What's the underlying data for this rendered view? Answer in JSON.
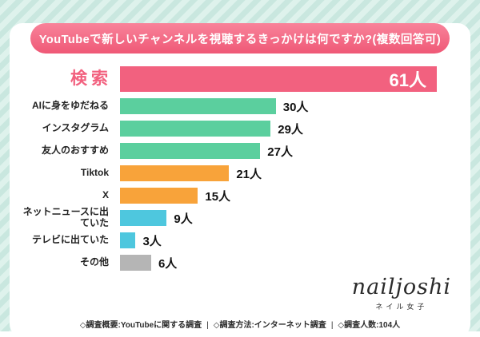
{
  "title": {
    "text": "YouTubeで新しいチャンネルを視聴するきっかけは何ですか?(複数回答可)"
  },
  "chart_data": {
    "type": "bar",
    "orientation": "horizontal",
    "title": "YouTubeで新しいチャンネルを視聴するきっかけは何ですか?(複数回答可)",
    "categories": [
      "検索",
      "AIに身をゆだねる",
      "インスタグラム",
      "友人のおすすめ",
      "Tiktok",
      "X",
      "ネットニュースに出ていた",
      "テレビに出ていた",
      "その他"
    ],
    "values": [
      61,
      30,
      29,
      27,
      21,
      15,
      9,
      3,
      6
    ],
    "value_labels": [
      "61人",
      "30人",
      "29人",
      "27人",
      "21人",
      "15人",
      "9人",
      "3人",
      "6人"
    ],
    "unit": "人",
    "xlim": [
      0,
      61
    ],
    "grid": false,
    "legend": "none",
    "bar_colors": [
      "#f2617f",
      "#5bcf9e",
      "#5bcf9e",
      "#5bcf9e",
      "#f8a33a",
      "#f8a33a",
      "#4ec7de",
      "#4ec7de",
      "#b5b5b5"
    ],
    "value_label_position": [
      "inside-end",
      "outside",
      "outside",
      "outside",
      "outside",
      "outside",
      "outside",
      "outside",
      "outside"
    ]
  },
  "footer": {
    "items": [
      "◇調査概要:YouTubeに関する調査",
      "◇調査方法:インターネット調査",
      "◇調査人数:104人"
    ],
    "separator": "|"
  },
  "logo": {
    "name": "nailjoshi",
    "subtitle": "ネイル女子"
  },
  "colors": {
    "accent_pink": "#f2617f",
    "green": "#5bcf9e",
    "orange": "#f8a33a",
    "cyan": "#4ec7de",
    "gray": "#b5b5b5",
    "banner_top": "#f8839a",
    "banner_bottom": "#ef5876",
    "background_stripe_a": "#c9e7df",
    "background_stripe_b": "#def2ec",
    "card_background": "#ffffff"
  }
}
